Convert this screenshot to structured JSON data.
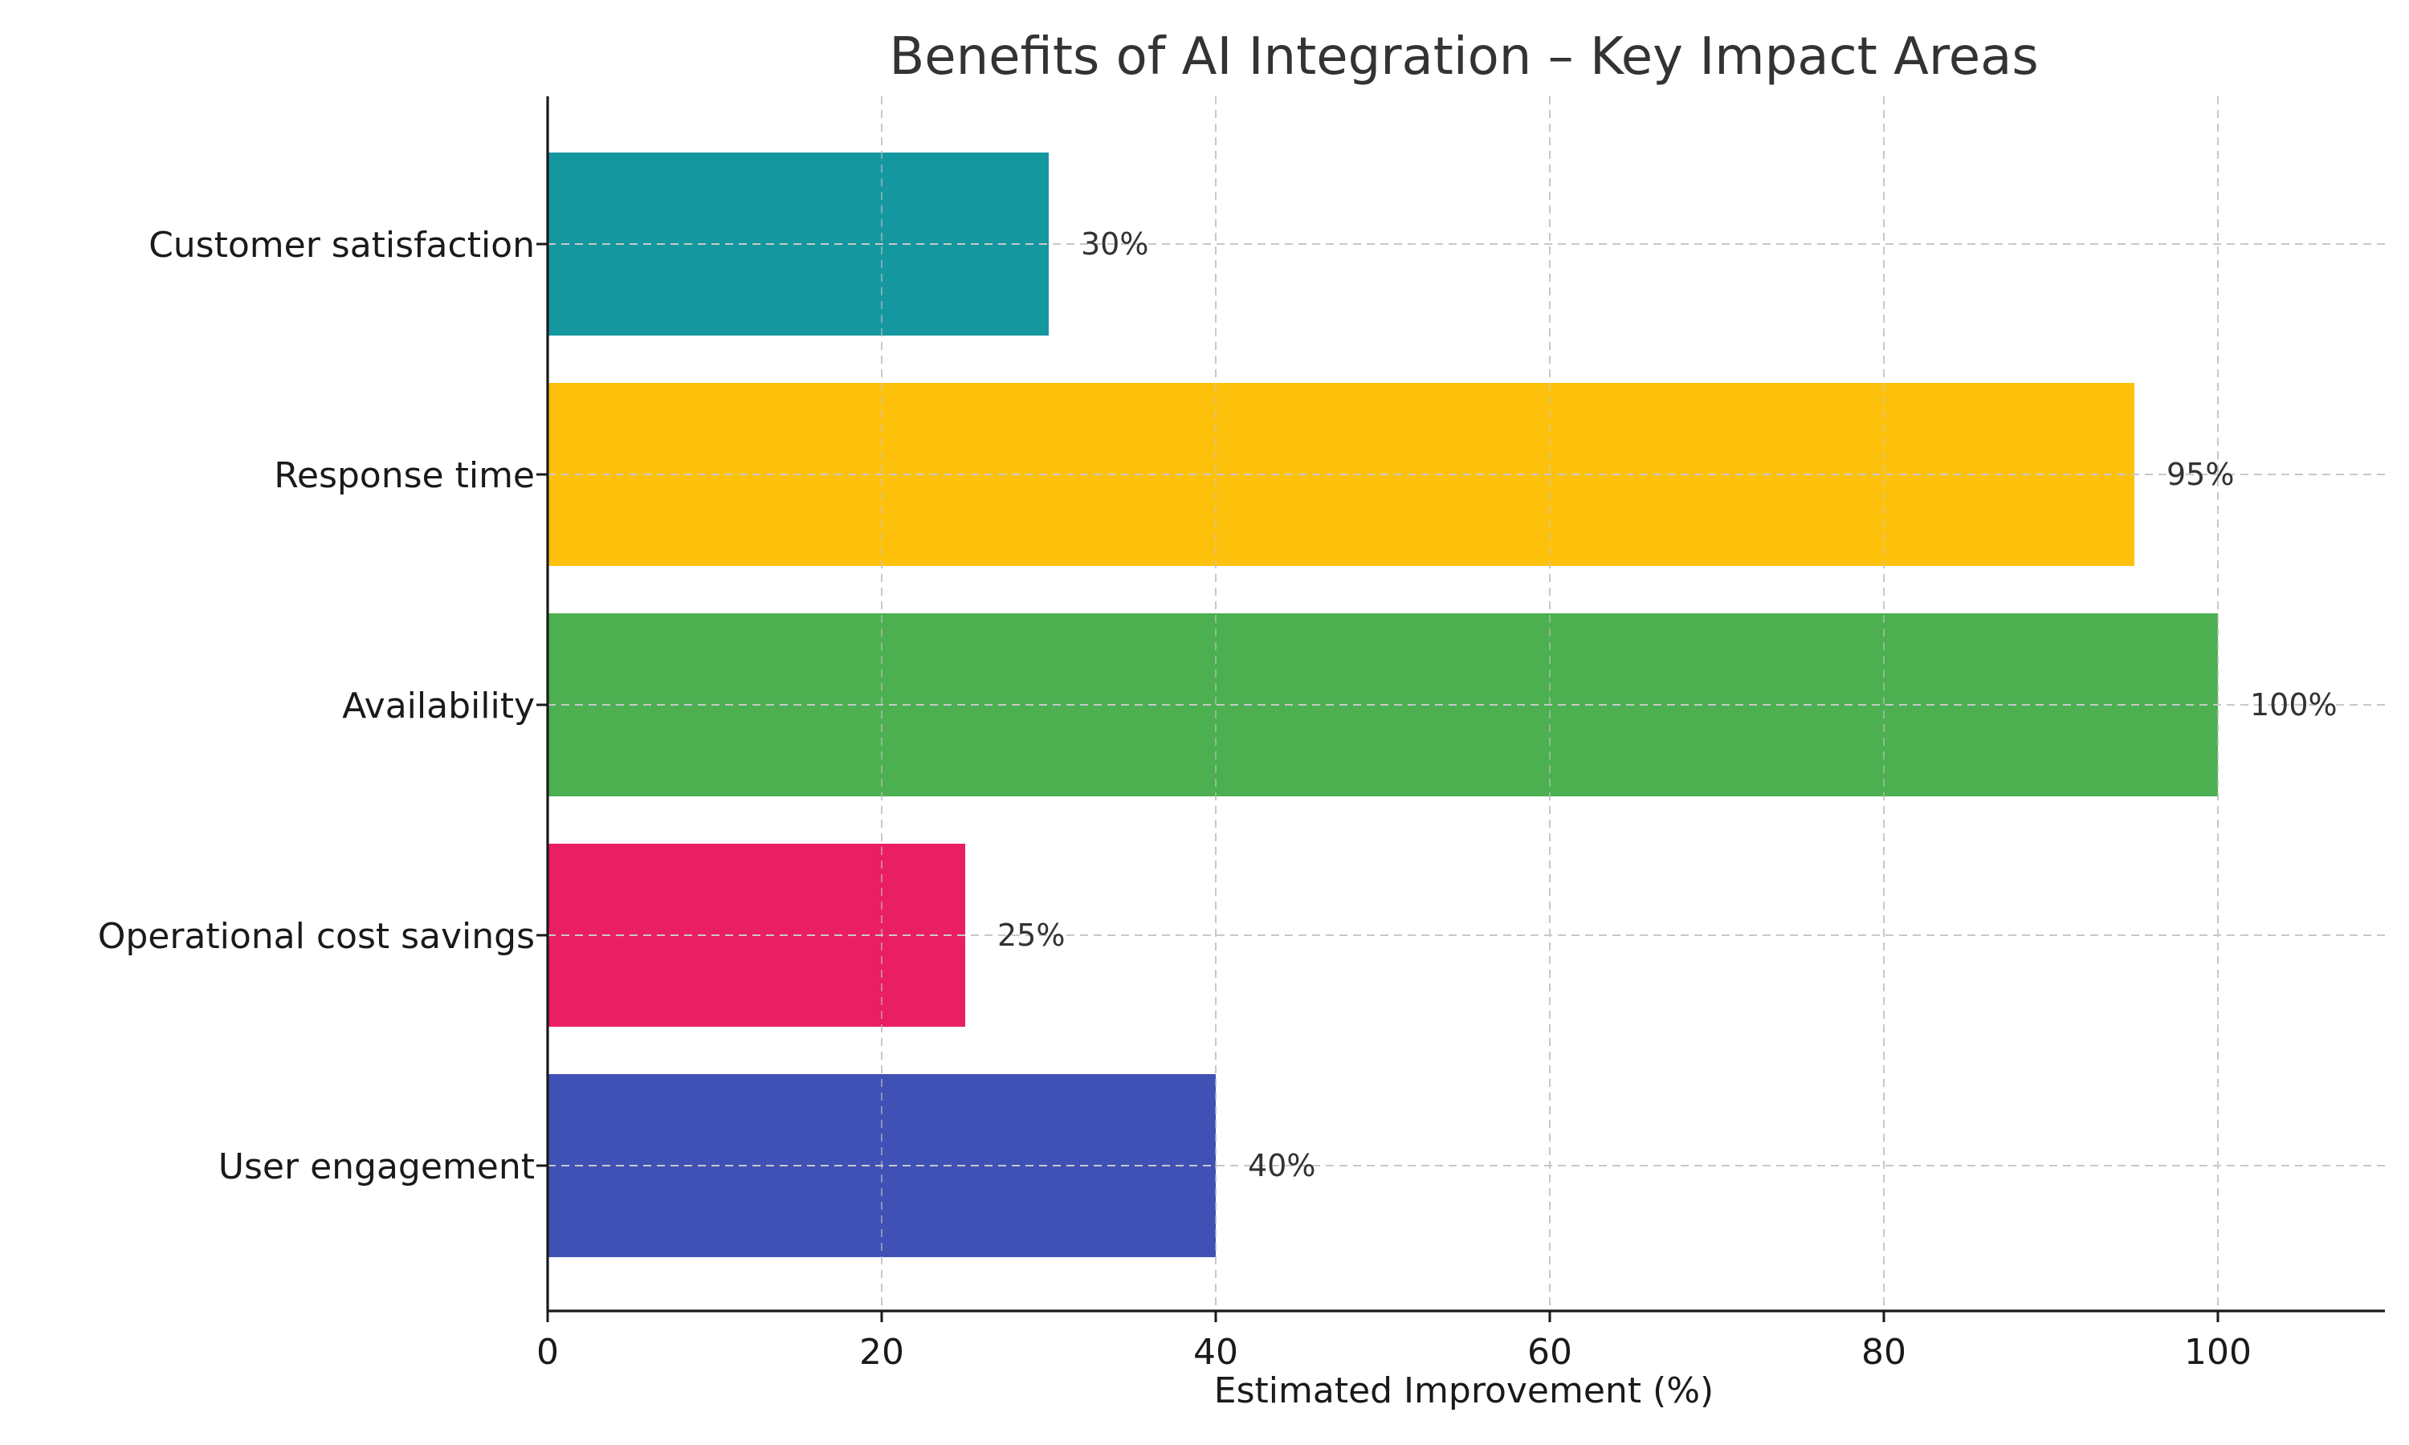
{
  "chart_data": {
    "type": "bar",
    "orientation": "horizontal",
    "title": "Benefits of AI Integration – Key Impact Areas",
    "xlabel": "Estimated Improvement (%)",
    "ylabel": "",
    "xlim": [
      0,
      110
    ],
    "xticks": [
      0,
      20,
      40,
      60,
      80,
      100
    ],
    "grid": true,
    "categories": [
      "Customer satisfaction",
      "Response time",
      "Availability",
      "Operational cost savings",
      "User engagement"
    ],
    "values": [
      30,
      95,
      100,
      25,
      40
    ],
    "value_labels": [
      "30%",
      "95%",
      "100%",
      "25%",
      "40%"
    ],
    "colors": [
      "#1597a0",
      "#fec10b",
      "#4caf50",
      "#e91e63",
      "#3f51b5"
    ]
  }
}
